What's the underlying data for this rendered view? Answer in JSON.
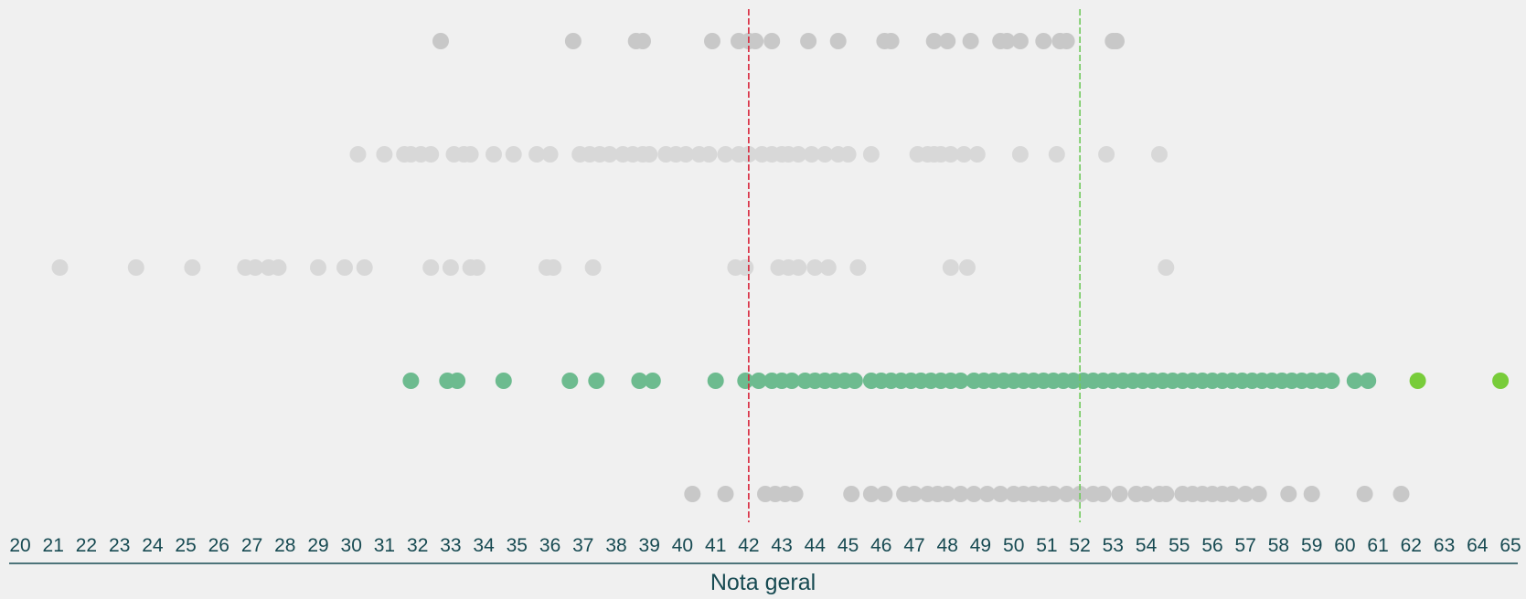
{
  "chart_data": {
    "type": "scatter",
    "title": "",
    "xlabel": "Nota geral",
    "ylabel": "",
    "xlim": [
      20,
      65
    ],
    "x_ticks": [
      "20",
      "21",
      "22",
      "23",
      "24",
      "25",
      "26",
      "27",
      "28",
      "29",
      "30",
      "31",
      "32",
      "33",
      "34",
      "35",
      "36",
      "37",
      "38",
      "39",
      "40",
      "41",
      "42",
      "43",
      "44",
      "45",
      "46",
      "47",
      "48",
      "49",
      "50",
      "51",
      "52",
      "53",
      "54",
      "55",
      "56",
      "57",
      "58",
      "59",
      "60",
      "61",
      "62",
      "63",
      "64",
      "65"
    ],
    "grid": false,
    "legend": "none",
    "reference_lines": [
      {
        "x": 42,
        "color": "#d8253a",
        "style": "dashed"
      },
      {
        "x": 52,
        "color": "#6fc95a",
        "style": "dashed"
      }
    ],
    "colors": {
      "gray": "#c8c8c8",
      "light_gray": "#d8d8d8",
      "green": "#6dbb8f",
      "bright_green": "#78cc3a",
      "axis": "#174a52"
    },
    "series": [
      {
        "row": 1,
        "color": "gray",
        "x": [
          32.7,
          36.7,
          38.6,
          38.8,
          40.9,
          41.7,
          42.0,
          42.2,
          42.7,
          43.8,
          44.7,
          46.1,
          46.3,
          47.6,
          48.0,
          48.7,
          49.6,
          49.8,
          50.2,
          50.9,
          51.4,
          51.6,
          53.0,
          53.1
        ]
      },
      {
        "row": 2,
        "color": "light_gray",
        "x": [
          30.2,
          31.0,
          31.6,
          31.8,
          32.1,
          32.4,
          33.1,
          33.4,
          33.6,
          34.3,
          34.9,
          35.6,
          36.0,
          36.9,
          37.2,
          37.5,
          37.8,
          38.2,
          38.5,
          38.8,
          39.0,
          39.5,
          39.8,
          40.1,
          40.5,
          40.8,
          41.3,
          41.7,
          42.0,
          42.4,
          42.7,
          43.0,
          43.2,
          43.5,
          43.9,
          44.3,
          44.7,
          45.0,
          45.7,
          47.1,
          47.4,
          47.6,
          47.8,
          48.1,
          48.5,
          48.9,
          50.2,
          51.3,
          52.8,
          54.4
        ]
      },
      {
        "row": 3,
        "color": "light_gray",
        "x": [
          21.2,
          23.5,
          25.2,
          26.8,
          27.1,
          27.5,
          27.8,
          29.0,
          29.8,
          30.4,
          32.4,
          33.0,
          33.6,
          33.8,
          35.9,
          36.1,
          37.3,
          41.6,
          41.9,
          42.9,
          43.2,
          43.5,
          44.0,
          44.4,
          45.3,
          48.1,
          48.6,
          54.6
        ]
      },
      {
        "row": 4,
        "color": "green",
        "x": [
          31.8,
          32.9,
          33.2,
          34.6,
          36.6,
          37.4,
          38.7,
          39.1,
          41.0,
          41.9,
          42.3,
          42.7,
          43.0,
          43.3,
          43.7,
          44.0,
          44.3,
          44.6,
          44.9,
          45.2,
          45.7,
          46.0,
          46.3,
          46.6,
          46.9,
          47.2,
          47.5,
          47.8,
          48.1,
          48.4,
          48.8,
          49.1,
          49.4,
          49.7,
          50.0,
          50.3,
          50.6,
          50.9,
          51.2,
          51.5,
          51.8,
          52.1,
          52.4,
          52.7,
          53.0,
          53.3,
          53.6,
          53.9,
          54.2,
          54.5,
          54.8,
          55.1,
          55.4,
          55.7,
          56.0,
          56.3,
          56.6,
          56.9,
          57.2,
          57.5,
          57.8,
          58.1,
          58.4,
          58.7,
          59.0,
          59.3,
          59.6,
          60.3,
          60.7
        ]
      },
      {
        "row": 4,
        "color": "bright_green",
        "x": [
          62.2,
          64.7
        ]
      },
      {
        "row": 5,
        "color": "gray",
        "x": [
          40.3,
          41.3,
          42.5,
          42.8,
          43.1,
          43.4,
          45.1,
          45.7,
          46.1,
          46.7,
          47.0,
          47.4,
          47.7,
          48.0,
          48.4,
          48.8,
          49.2,
          49.6,
          50.0,
          50.3,
          50.6,
          50.9,
          51.2,
          51.6,
          52.0,
          52.4,
          52.7,
          53.2,
          53.7,
          54.0,
          54.4,
          54.6,
          55.1,
          55.4,
          55.7,
          56.0,
          56.3,
          56.6,
          57.0,
          57.4,
          58.3,
          59.0,
          60.6,
          61.7
        ]
      }
    ]
  }
}
